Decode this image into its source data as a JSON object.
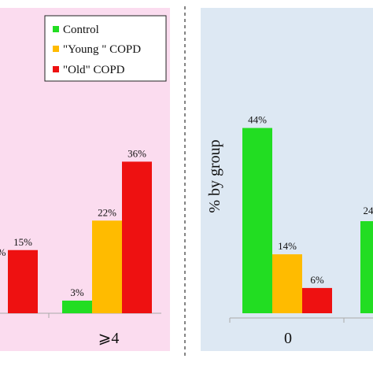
{
  "chart_data": [
    {
      "type": "bar",
      "background": "#fbdcef",
      "categories": [
        "",
        "⩾4"
      ],
      "series": [
        {
          "name": "Control",
          "color": "#22dd22",
          "values": [
            null,
            3
          ],
          "labels": [
            "",
            "3%"
          ]
        },
        {
          "name": "\"Young \" COPD",
          "color": "#ffbb00",
          "values": [
            null,
            22
          ],
          "labels": [
            "%",
            "22%"
          ]
        },
        {
          "name": "\"Old\" COPD",
          "color": "#ee1111",
          "values": [
            15,
            36
          ],
          "labels": [
            "15%",
            "36%"
          ]
        }
      ],
      "legend": {
        "position": "top-right"
      },
      "ylabel": "",
      "ylim": [
        0,
        50
      ],
      "grid": false
    },
    {
      "type": "bar",
      "background": "#dde8f3",
      "categories": [
        "0",
        ""
      ],
      "series": [
        {
          "name": "Control",
          "color": "#22dd22",
          "values": [
            44,
            24
          ],
          "labels": [
            "44%",
            "24"
          ]
        },
        {
          "name": "\"Young \" COPD",
          "color": "#ffbb00",
          "values": [
            14,
            null
          ],
          "labels": [
            "14%",
            ""
          ]
        },
        {
          "name": "\"Old\" COPD",
          "color": "#ee1111",
          "values": [
            6,
            null
          ],
          "labels": [
            "6%",
            ""
          ]
        }
      ],
      "ylabel": "% by group",
      "ylim": [
        0,
        50
      ],
      "grid": false
    }
  ]
}
